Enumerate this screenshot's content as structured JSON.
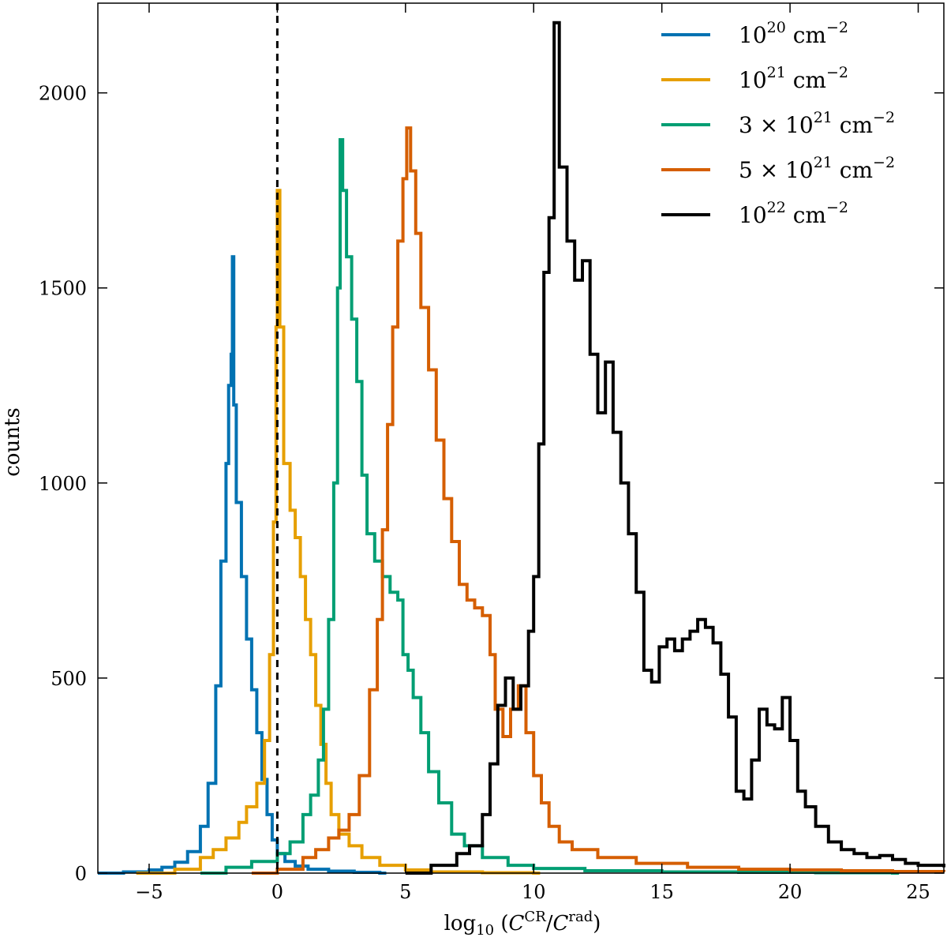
{
  "chart_data": {
    "type": "step-histogram",
    "title": "",
    "xlabel": "log10 (C^CR / C^rad)",
    "ylabel": "counts",
    "xlim": [
      -7,
      26
    ],
    "ylim": [
      0,
      2230
    ],
    "x_ticks": [
      -5,
      0,
      5,
      10,
      15,
      20,
      25
    ],
    "y_ticks": [
      0,
      500,
      1000,
      1500,
      2000
    ],
    "x_tick_labels": [
      "−5",
      "0",
      "5",
      "10",
      "15",
      "20",
      "25"
    ],
    "y_tick_labels": [
      "0",
      "500",
      "1000",
      "1500",
      "2000"
    ],
    "grid": false,
    "legend_position": "top-right",
    "reference_line": {
      "x": 0,
      "style": "dashed",
      "color": "#000000"
    },
    "series": [
      {
        "name": "10^20 cm^-2",
        "label_base": "10",
        "label_exp": "20",
        "label_unit": "cm",
        "label_unit_exp": "−2",
        "color": "#0072B2",
        "points": [
          [
            -7,
            0
          ],
          [
            -6,
            3
          ],
          [
            -5,
            8
          ],
          [
            -4.5,
            15
          ],
          [
            -4,
            28
          ],
          [
            -3.5,
            55
          ],
          [
            -3,
            120
          ],
          [
            -2.7,
            230
          ],
          [
            -2.4,
            480
          ],
          [
            -2.2,
            800
          ],
          [
            -2.0,
            1050
          ],
          [
            -1.9,
            1250
          ],
          [
            -1.8,
            1330
          ],
          [
            -1.75,
            1580
          ],
          [
            -1.7,
            1200
          ],
          [
            -1.6,
            950
          ],
          [
            -1.4,
            760
          ],
          [
            -1.2,
            600
          ],
          [
            -1.0,
            470
          ],
          [
            -0.8,
            360
          ],
          [
            -0.6,
            240
          ],
          [
            -0.4,
            150
          ],
          [
            -0.2,
            85
          ],
          [
            0,
            50
          ],
          [
            0.3,
            30
          ],
          [
            0.7,
            18
          ],
          [
            1.2,
            10
          ],
          [
            2,
            5
          ],
          [
            3,
            2
          ],
          [
            4,
            0
          ]
        ]
      },
      {
        "name": "10^21 cm^-2",
        "label_base": "10",
        "label_exp": "21",
        "label_unit": "cm",
        "label_unit_exp": "−2",
        "color": "#E69F00",
        "points": [
          [
            -5.5,
            0
          ],
          [
            -4,
            10
          ],
          [
            -3,
            40
          ],
          [
            -2.5,
            60
          ],
          [
            -2,
            90
          ],
          [
            -1.5,
            130
          ],
          [
            -1.2,
            170
          ],
          [
            -0.8,
            230
          ],
          [
            -0.5,
            340
          ],
          [
            -0.3,
            560
          ],
          [
            -0.15,
            900
          ],
          [
            -0.05,
            1400
          ],
          [
            0,
            1750
          ],
          [
            0.1,
            1400
          ],
          [
            0.25,
            1050
          ],
          [
            0.5,
            930
          ],
          [
            0.7,
            860
          ],
          [
            0.9,
            760
          ],
          [
            1.1,
            650
          ],
          [
            1.3,
            560
          ],
          [
            1.5,
            430
          ],
          [
            1.7,
            330
          ],
          [
            1.9,
            230
          ],
          [
            2.1,
            150
          ],
          [
            2.4,
            100
          ],
          [
            2.8,
            70
          ],
          [
            3.3,
            40
          ],
          [
            4,
            20
          ],
          [
            5,
            8
          ],
          [
            6,
            3
          ],
          [
            8,
            1
          ],
          [
            10,
            0
          ]
        ]
      },
      {
        "name": "3 × 10^21 cm^-2",
        "label_base": "3 × 10",
        "label_exp": "21",
        "label_unit": "cm",
        "label_unit_exp": "−2",
        "color": "#009E73",
        "points": [
          [
            -3,
            0
          ],
          [
            -2,
            15
          ],
          [
            -1,
            30
          ],
          [
            0,
            50
          ],
          [
            0.5,
            80
          ],
          [
            1.0,
            150
          ],
          [
            1.3,
            200
          ],
          [
            1.6,
            290
          ],
          [
            1.8,
            420
          ],
          [
            2.0,
            650
          ],
          [
            2.2,
            1000
          ],
          [
            2.35,
            1500
          ],
          [
            2.45,
            1880
          ],
          [
            2.55,
            1750
          ],
          [
            2.7,
            1580
          ],
          [
            2.9,
            1420
          ],
          [
            3.1,
            1260
          ],
          [
            3.3,
            1020
          ],
          [
            3.5,
            870
          ],
          [
            3.8,
            800
          ],
          [
            4.1,
            760
          ],
          [
            4.4,
            720
          ],
          [
            4.7,
            700
          ],
          [
            4.9,
            560
          ],
          [
            5.1,
            520
          ],
          [
            5.3,
            450
          ],
          [
            5.6,
            360
          ],
          [
            5.9,
            260
          ],
          [
            6.3,
            180
          ],
          [
            6.8,
            100
          ],
          [
            7.3,
            70
          ],
          [
            8,
            40
          ],
          [
            9,
            20
          ],
          [
            10,
            12
          ],
          [
            12,
            6
          ],
          [
            15,
            3
          ],
          [
            18,
            2
          ],
          [
            21,
            1
          ],
          [
            24,
            0
          ]
        ]
      },
      {
        "name": "5 × 10^21 cm^-2",
        "label_base": "5 × 10",
        "label_exp": "21",
        "label_unit": "cm",
        "label_unit_exp": "−2",
        "color": "#D55E00",
        "points": [
          [
            -1,
            0
          ],
          [
            0,
            10
          ],
          [
            1,
            40
          ],
          [
            1.5,
            60
          ],
          [
            2,
            90
          ],
          [
            2.4,
            110
          ],
          [
            2.8,
            150
          ],
          [
            3.2,
            250
          ],
          [
            3.6,
            470
          ],
          [
            3.9,
            650
          ],
          [
            4.1,
            880
          ],
          [
            4.3,
            1150
          ],
          [
            4.5,
            1400
          ],
          [
            4.7,
            1620
          ],
          [
            4.9,
            1780
          ],
          [
            5.05,
            1910
          ],
          [
            5.2,
            1800
          ],
          [
            5.4,
            1640
          ],
          [
            5.6,
            1450
          ],
          [
            5.9,
            1290
          ],
          [
            6.2,
            1110
          ],
          [
            6.5,
            960
          ],
          [
            6.8,
            850
          ],
          [
            7.1,
            740
          ],
          [
            7.4,
            700
          ],
          [
            7.7,
            680
          ],
          [
            8.0,
            660
          ],
          [
            8.3,
            560
          ],
          [
            8.5,
            420
          ],
          [
            8.8,
            350
          ],
          [
            9.1,
            420
          ],
          [
            9.4,
            480
          ],
          [
            9.7,
            360
          ],
          [
            10.0,
            250
          ],
          [
            10.3,
            180
          ],
          [
            10.6,
            120
          ],
          [
            11,
            80
          ],
          [
            11.5,
            60
          ],
          [
            12.5,
            40
          ],
          [
            14,
            25
          ],
          [
            16,
            15
          ],
          [
            18,
            10
          ],
          [
            20,
            8
          ],
          [
            22,
            6
          ],
          [
            24,
            4
          ],
          [
            26,
            3
          ]
        ]
      },
      {
        "name": "10^22 cm^-2",
        "label_base": "10",
        "label_exp": "22",
        "label_unit": "cm",
        "label_unit_exp": "−2",
        "color": "#000000",
        "points": [
          [
            5,
            0
          ],
          [
            6,
            20
          ],
          [
            7,
            50
          ],
          [
            7.5,
            70
          ],
          [
            8.0,
            150
          ],
          [
            8.3,
            280
          ],
          [
            8.6,
            430
          ],
          [
            8.9,
            500
          ],
          [
            9.2,
            420
          ],
          [
            9.5,
            480
          ],
          [
            9.8,
            620
          ],
          [
            10.0,
            760
          ],
          [
            10.2,
            1100
          ],
          [
            10.4,
            1540
          ],
          [
            10.6,
            1680
          ],
          [
            10.8,
            2180
          ],
          [
            11.0,
            1810
          ],
          [
            11.3,
            1620
          ],
          [
            11.6,
            1520
          ],
          [
            11.9,
            1570
          ],
          [
            12.2,
            1330
          ],
          [
            12.5,
            1180
          ],
          [
            12.8,
            1310
          ],
          [
            13.1,
            1130
          ],
          [
            13.4,
            1000
          ],
          [
            13.7,
            870
          ],
          [
            14.0,
            720
          ],
          [
            14.3,
            520
          ],
          [
            14.6,
            490
          ],
          [
            14.9,
            580
          ],
          [
            15.2,
            600
          ],
          [
            15.5,
            570
          ],
          [
            15.8,
            600
          ],
          [
            16.1,
            620
          ],
          [
            16.4,
            650
          ],
          [
            16.7,
            630
          ],
          [
            17.0,
            590
          ],
          [
            17.3,
            510
          ],
          [
            17.6,
            400
          ],
          [
            17.9,
            210
          ],
          [
            18.2,
            190
          ],
          [
            18.5,
            290
          ],
          [
            18.8,
            420
          ],
          [
            19.1,
            380
          ],
          [
            19.4,
            370
          ],
          [
            19.7,
            450
          ],
          [
            20.0,
            340
          ],
          [
            20.3,
            210
          ],
          [
            20.6,
            170
          ],
          [
            21.0,
            120
          ],
          [
            21.5,
            80
          ],
          [
            22,
            60
          ],
          [
            22.5,
            50
          ],
          [
            23,
            40
          ],
          [
            23.5,
            45
          ],
          [
            24,
            35
          ],
          [
            24.5,
            25
          ],
          [
            25,
            20
          ],
          [
            26,
            15
          ]
        ]
      }
    ]
  }
}
